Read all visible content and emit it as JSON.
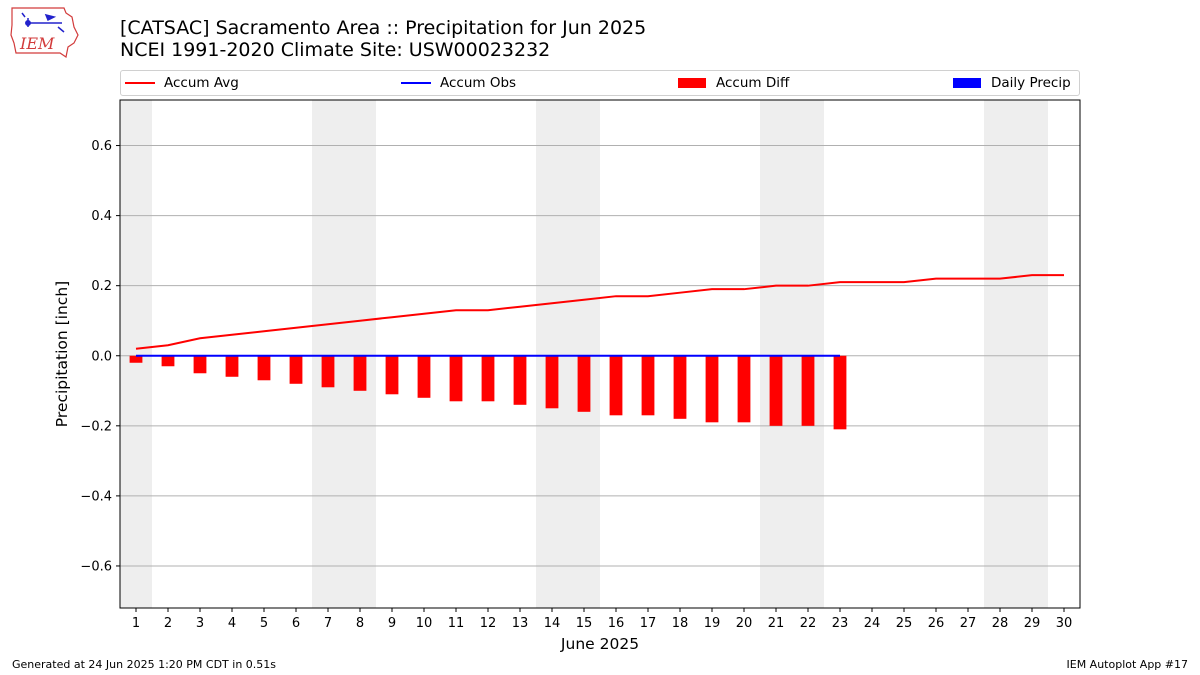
{
  "header": {
    "title_line1": "[CATSAC] Sacramento Area :: Precipitation for Jun 2025",
    "title_line2": "NCEI 1991-2020 Climate Site: USW00023232",
    "logo_text": "IEM"
  },
  "legend": {
    "items": [
      {
        "label": "Accum Avg",
        "kind": "line",
        "color": "#ff0000"
      },
      {
        "label": "Accum Obs",
        "kind": "line",
        "color": "#0000ff"
      },
      {
        "label": "Accum Diff",
        "kind": "patch",
        "color": "#ff0000"
      },
      {
        "label": "Daily Precip",
        "kind": "patch",
        "color": "#0000ff"
      }
    ]
  },
  "footer": {
    "left": "Generated at 24 Jun 2025 1:20 PM CDT in 0.51s",
    "right": "IEM Autoplot App #17"
  },
  "chart_data": {
    "type": "bar",
    "xlabel": "June 2025",
    "ylabel": "Precipitation [inch]",
    "x_ticks": [
      1,
      2,
      3,
      4,
      5,
      6,
      7,
      8,
      9,
      10,
      11,
      12,
      13,
      14,
      15,
      16,
      17,
      18,
      19,
      20,
      21,
      22,
      23,
      24,
      25,
      26,
      27,
      28,
      29,
      30
    ],
    "xlim": [
      0.5,
      30.5
    ],
    "ylim": [
      -0.72,
      0.73
    ],
    "y_ticks": [
      -0.6,
      -0.4,
      -0.2,
      0.0,
      0.2,
      0.4,
      0.6
    ],
    "y_tick_labels": [
      "−0.6",
      "−0.4",
      "−0.2",
      "0.0",
      "0.2",
      "0.4",
      "0.6"
    ],
    "grid": "horizontal",
    "weekend_shading": [
      [
        0.5,
        1.5
      ],
      [
        6.5,
        8.5
      ],
      [
        13.5,
        15.5
      ],
      [
        20.5,
        22.5
      ],
      [
        27.5,
        29.5
      ]
    ],
    "weekend_color": "#eeeeee",
    "series": [
      {
        "name": "Accum Avg",
        "kind": "line",
        "color": "#ff0000",
        "x": [
          1,
          2,
          3,
          4,
          5,
          6,
          7,
          8,
          9,
          10,
          11,
          12,
          13,
          14,
          15,
          16,
          17,
          18,
          19,
          20,
          21,
          22,
          23,
          24,
          25,
          26,
          27,
          28,
          29,
          30
        ],
        "values": [
          0.02,
          0.03,
          0.05,
          0.06,
          0.07,
          0.08,
          0.09,
          0.1,
          0.11,
          0.12,
          0.13,
          0.13,
          0.14,
          0.15,
          0.16,
          0.17,
          0.17,
          0.18,
          0.19,
          0.19,
          0.2,
          0.2,
          0.21,
          0.21,
          0.21,
          0.22,
          0.22,
          0.22,
          0.23,
          0.23
        ]
      },
      {
        "name": "Accum Obs",
        "kind": "line",
        "color": "#0000ff",
        "x": [
          1,
          2,
          3,
          4,
          5,
          6,
          7,
          8,
          9,
          10,
          11,
          12,
          13,
          14,
          15,
          16,
          17,
          18,
          19,
          20,
          21,
          22,
          23
        ],
        "values": [
          0,
          0,
          0,
          0,
          0,
          0,
          0,
          0,
          0,
          0,
          0,
          0,
          0,
          0,
          0,
          0,
          0,
          0,
          0,
          0,
          0,
          0,
          0
        ]
      },
      {
        "name": "Accum Diff",
        "kind": "bar",
        "color": "#ff0000",
        "x": [
          1,
          2,
          3,
          4,
          5,
          6,
          7,
          8,
          9,
          10,
          11,
          12,
          13,
          14,
          15,
          16,
          17,
          18,
          19,
          20,
          21,
          22,
          23
        ],
        "values": [
          -0.02,
          -0.03,
          -0.05,
          -0.06,
          -0.07,
          -0.08,
          -0.09,
          -0.1,
          -0.11,
          -0.12,
          -0.13,
          -0.13,
          -0.14,
          -0.15,
          -0.16,
          -0.17,
          -0.17,
          -0.18,
          -0.19,
          -0.19,
          -0.2,
          -0.2,
          -0.21
        ]
      },
      {
        "name": "Daily Precip",
        "kind": "bar",
        "color": "#0000ff",
        "x": [
          1,
          2,
          3,
          4,
          5,
          6,
          7,
          8,
          9,
          10,
          11,
          12,
          13,
          14,
          15,
          16,
          17,
          18,
          19,
          20,
          21,
          22,
          23
        ],
        "values": [
          0,
          0,
          0,
          0,
          0,
          0,
          0,
          0,
          0,
          0,
          0,
          0,
          0,
          0,
          0,
          0,
          0,
          0,
          0,
          0,
          0,
          0,
          0
        ]
      }
    ]
  }
}
